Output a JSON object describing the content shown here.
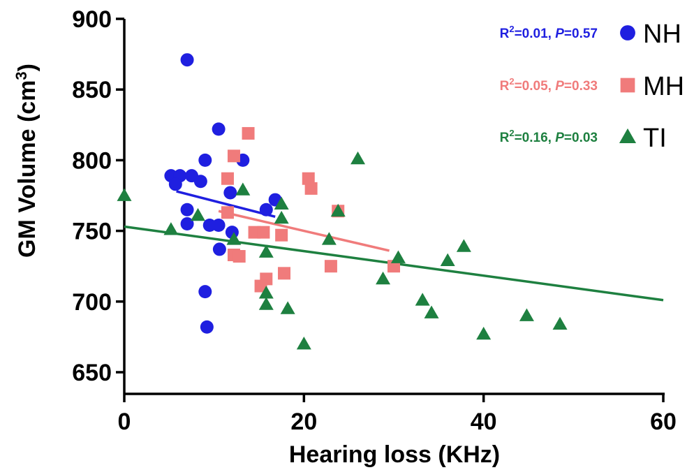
{
  "chart_data": {
    "type": "scatter",
    "xlabel": "Hearing loss (KHz)",
    "ylabel": "GM Volume (cm",
    "ylabel_sup": "3",
    "ylabel_end": ")",
    "xlim": [
      0,
      60
    ],
    "ylim": [
      650,
      900
    ],
    "x_ticks": [
      "0",
      "20",
      "40",
      "60"
    ],
    "y_ticks": [
      "650",
      "700",
      "750",
      "800",
      "850",
      "900"
    ],
    "x_tick_values": [
      0,
      20,
      40,
      60
    ],
    "y_tick_values": [
      650,
      700,
      750,
      800,
      850,
      900
    ],
    "grid": false,
    "legend_position": "top-right",
    "series": [
      {
        "name": "NH",
        "marker": "circle",
        "color": "#1f1fe0",
        "stat_r2": "0.01",
        "stat_p": "0.57",
        "fit": [
          [
            5.8,
            778
          ],
          [
            16.8,
            760
          ]
        ],
        "points": [
          [
            7.0,
            871
          ],
          [
            10.5,
            822
          ],
          [
            9.0,
            800
          ],
          [
            13.2,
            800
          ],
          [
            5.2,
            789
          ],
          [
            6.2,
            789
          ],
          [
            7.5,
            789
          ],
          [
            8.5,
            785
          ],
          [
            5.7,
            783
          ],
          [
            11.8,
            777
          ],
          [
            16.8,
            772
          ],
          [
            15.8,
            765
          ],
          [
            7.0,
            765
          ],
          [
            7.0,
            755
          ],
          [
            9.5,
            754
          ],
          [
            10.5,
            754
          ],
          [
            12.0,
            749
          ],
          [
            10.6,
            737
          ],
          [
            9.0,
            707
          ],
          [
            9.2,
            682
          ]
        ]
      },
      {
        "name": "MH",
        "marker": "square",
        "color": "#f07b7b",
        "stat_r2": "0.05",
        "stat_p": "0.33",
        "fit": [
          [
            10.5,
            764
          ],
          [
            29.5,
            736
          ]
        ],
        "points": [
          [
            13.8,
            819
          ],
          [
            12.2,
            803
          ],
          [
            11.5,
            787
          ],
          [
            20.5,
            787
          ],
          [
            20.8,
            780
          ],
          [
            23.8,
            764
          ],
          [
            11.5,
            763
          ],
          [
            14.5,
            749
          ],
          [
            15.5,
            749
          ],
          [
            17.5,
            747
          ],
          [
            12.2,
            733
          ],
          [
            12.8,
            732
          ],
          [
            23.0,
            725
          ],
          [
            30.0,
            725
          ],
          [
            17.8,
            720
          ],
          [
            15.8,
            716
          ],
          [
            15.2,
            711
          ]
        ]
      },
      {
        "name": "TI",
        "marker": "triangle",
        "color": "#1e8040",
        "stat_r2": "0.16",
        "stat_p": "0.03",
        "fit": [
          [
            0,
            753
          ],
          [
            60,
            701
          ]
        ],
        "points": [
          [
            0,
            775
          ],
          [
            26,
            801
          ],
          [
            13.2,
            779
          ],
          [
            8.2,
            761
          ],
          [
            17.5,
            769
          ],
          [
            17.5,
            759
          ],
          [
            23.8,
            764
          ],
          [
            5.2,
            751
          ],
          [
            12.2,
            744
          ],
          [
            22.8,
            744
          ],
          [
            15.8,
            735
          ],
          [
            30.5,
            731
          ],
          [
            36.0,
            729
          ],
          [
            37.8,
            739
          ],
          [
            28.8,
            716
          ],
          [
            15.8,
            706
          ],
          [
            15.8,
            698
          ],
          [
            18.2,
            695
          ],
          [
            33.2,
            701
          ],
          [
            34.2,
            692
          ],
          [
            44.8,
            690
          ],
          [
            48.5,
            684
          ],
          [
            20.0,
            670
          ],
          [
            40.0,
            677
          ]
        ]
      }
    ]
  }
}
